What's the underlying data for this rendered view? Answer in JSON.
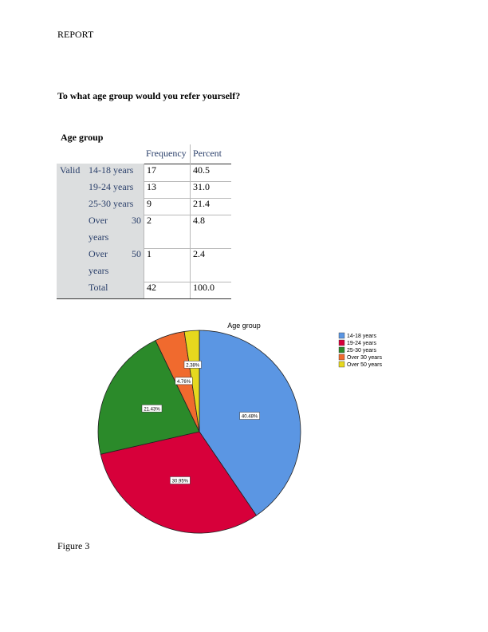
{
  "header": {
    "title": "REPORT"
  },
  "question": "To what age group would you refer yourself?",
  "table": {
    "title": "Age group",
    "headers": [
      "Frequency",
      "Percent"
    ],
    "group_label": "Valid",
    "rows": [
      {
        "label_lines": [
          "14-18 years"
        ],
        "frequency": "17",
        "percent": "40.5"
      },
      {
        "label_lines": [
          "19-24 years"
        ],
        "frequency": "13",
        "percent": "31.0"
      },
      {
        "label_lines": [
          "25-30 years"
        ],
        "frequency": "9",
        "percent": "21.4"
      },
      {
        "label_lines": [
          "Over",
          "30",
          "years"
        ],
        "frequency": "2",
        "percent": "4.8"
      },
      {
        "label_lines": [
          "Over",
          "50",
          "years"
        ],
        "frequency": "1",
        "percent": "2.4"
      }
    ],
    "total": {
      "label": "Total",
      "frequency": "42",
      "percent": "100.0"
    }
  },
  "chart_data": {
    "type": "pie",
    "title": "Age group",
    "categories": [
      "14-18 years",
      "19-24 years",
      "25-30 years",
      "Over 30 years",
      "Over 50 years"
    ],
    "values": [
      40.48,
      30.95,
      21.43,
      4.76,
      2.38
    ],
    "labels": [
      "40.48%",
      "30.95%",
      "21.43%",
      "4.76%",
      "2.38%"
    ],
    "colors": [
      "#5b96e3",
      "#d7003a",
      "#2b8a2a",
      "#f06a2e",
      "#e6d81e"
    ],
    "legend_position": "right"
  },
  "caption": "Figure 3"
}
